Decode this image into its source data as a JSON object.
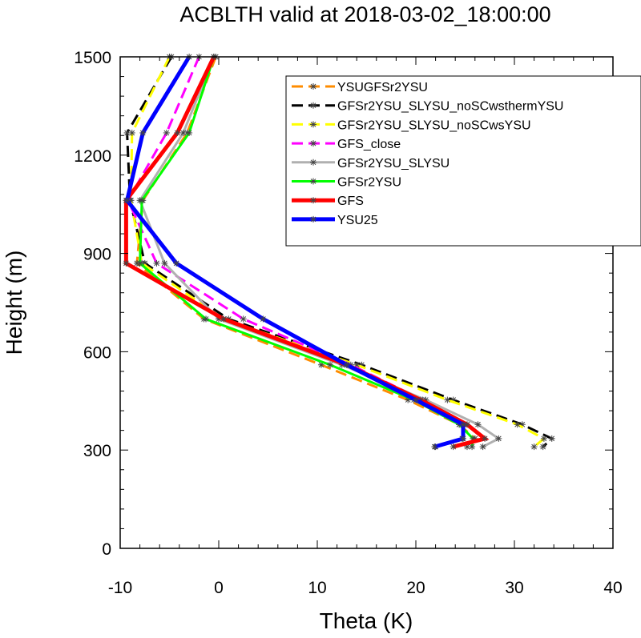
{
  "chart_data": {
    "type": "line",
    "title": "ACBLTH valid at 2018-03-02_18:00:00",
    "xlabel": "Theta (K)",
    "ylabel": "Height (m)",
    "xlim": [
      -10,
      40
    ],
    "ylim": [
      0,
      1500
    ],
    "xticks": [
      -10,
      0,
      10,
      20,
      30,
      40
    ],
    "yticks": [
      0,
      300,
      600,
      900,
      1200,
      1500
    ],
    "legend_position": "top-right",
    "series": [
      {
        "name": "YSUGFSr2YSU",
        "color": "#FF8C00",
        "dash": "dashed",
        "width": 3,
        "points": [
          [
            -0.3,
            1500
          ],
          [
            -3.2,
            1268
          ],
          [
            -7.7,
            1062
          ],
          [
            -8.3,
            870
          ],
          [
            -1.5,
            700
          ],
          [
            10.4,
            560
          ],
          [
            19.2,
            453
          ],
          [
            24.4,
            378
          ],
          [
            26.0,
            335
          ],
          [
            25.2,
            310
          ]
        ]
      },
      {
        "name": "GFSr2YSU_SLYSU_noSCwsthermYSU",
        "color": "#000000",
        "dash": "dashed",
        "width": 3,
        "points": [
          [
            -4.8,
            1500
          ],
          [
            -9.3,
            1268
          ],
          [
            -9.0,
            1062
          ],
          [
            -7.5,
            870
          ],
          [
            1.0,
            700
          ],
          [
            14.5,
            560
          ],
          [
            23.8,
            453
          ],
          [
            30.8,
            378
          ],
          [
            33.8,
            335
          ],
          [
            32.9,
            310
          ]
        ]
      },
      {
        "name": "GFSr2YSU_SLYSU_noSCwsYSU",
        "color": "#FFFF00",
        "dash": "dashed",
        "width": 3,
        "points": [
          [
            -5.0,
            1500
          ],
          [
            -8.8,
            1268
          ],
          [
            -8.9,
            1062
          ],
          [
            -7.8,
            870
          ],
          [
            0.5,
            700
          ],
          [
            14.0,
            560
          ],
          [
            23.2,
            453
          ],
          [
            30.3,
            378
          ],
          [
            33.0,
            335
          ],
          [
            32.0,
            310
          ]
        ]
      },
      {
        "name": "GFS_close",
        "color": "#FF00FF",
        "dash": "dashed",
        "width": 3,
        "points": [
          [
            -2.0,
            1500
          ],
          [
            -5.3,
            1268
          ],
          [
            -9.2,
            1062
          ],
          [
            -6.3,
            870
          ],
          [
            2.5,
            700
          ],
          [
            13.4,
            560
          ],
          [
            20.7,
            453
          ],
          [
            24.9,
            378
          ],
          [
            24.7,
            335
          ],
          [
            22.0,
            310
          ]
        ]
      },
      {
        "name": "GFSr2YSU_SLYSU",
        "color": "#B0B0B0",
        "dash": "solid",
        "width": 3,
        "points": [
          [
            -0.5,
            1500
          ],
          [
            -3.6,
            1268
          ],
          [
            -8.0,
            1062
          ],
          [
            -5.5,
            870
          ],
          [
            0.0,
            700
          ],
          [
            12.5,
            560
          ],
          [
            21.0,
            453
          ],
          [
            26.3,
            378
          ],
          [
            28.4,
            335
          ],
          [
            26.8,
            310
          ]
        ]
      },
      {
        "name": "GFSr2YSU",
        "color": "#00FF00",
        "dash": "solid",
        "width": 3,
        "points": [
          [
            -0.5,
            1500
          ],
          [
            -3.0,
            1268
          ],
          [
            -7.8,
            1062
          ],
          [
            -8.0,
            870
          ],
          [
            -1.3,
            700
          ],
          [
            11.3,
            560
          ],
          [
            19.8,
            453
          ],
          [
            24.4,
            378
          ],
          [
            25.8,
            335
          ],
          [
            25.7,
            310
          ]
        ]
      },
      {
        "name": "GFS",
        "color": "#FF0000",
        "dash": "solid",
        "width": 5,
        "points": [
          [
            -0.5,
            1500
          ],
          [
            -4.2,
            1268
          ],
          [
            -9.4,
            1062
          ],
          [
            -9.4,
            870
          ],
          [
            0.5,
            700
          ],
          [
            13.0,
            560
          ],
          [
            20.5,
            453
          ],
          [
            25.2,
            378
          ],
          [
            27.0,
            335
          ],
          [
            23.8,
            310
          ]
        ]
      },
      {
        "name": "YSU25",
        "color": "#0000FF",
        "dash": "solid",
        "width": 5,
        "points": [
          [
            -3.0,
            1500
          ],
          [
            -7.7,
            1268
          ],
          [
            -9.3,
            1062
          ],
          [
            -4.3,
            870
          ],
          [
            4.5,
            700
          ],
          [
            13.0,
            560
          ],
          [
            20.0,
            453
          ],
          [
            24.8,
            378
          ],
          [
            24.8,
            335
          ],
          [
            21.9,
            310
          ]
        ]
      }
    ]
  }
}
